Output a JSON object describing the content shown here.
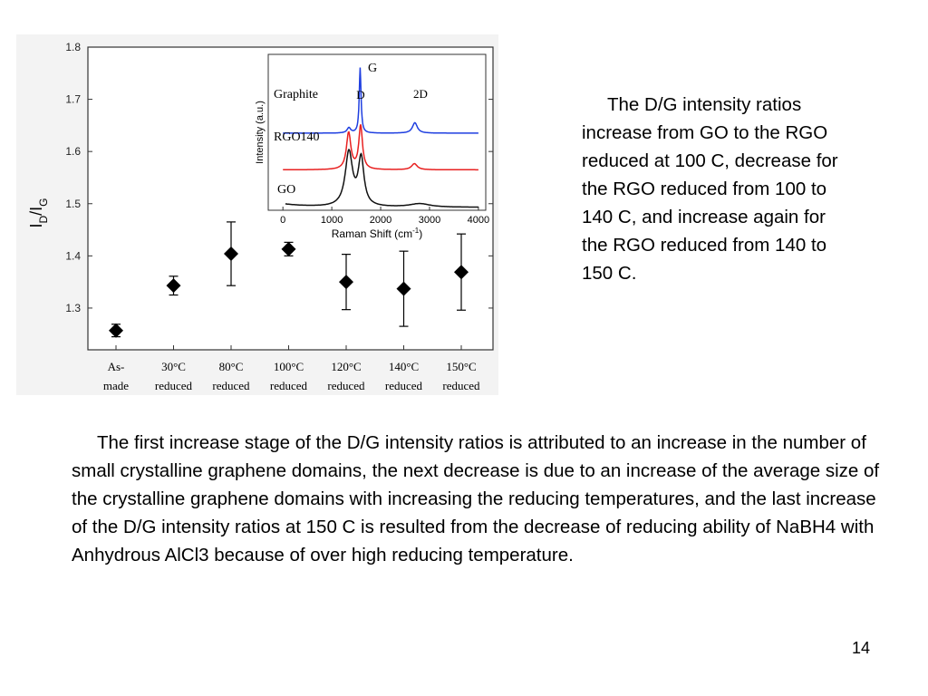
{
  "chart_data": [
    {
      "type": "scatter",
      "title": "",
      "xlabel": "",
      "ylabel_main": "I",
      "ylabel_sub_d": "D",
      "ylabel_sep": "/I",
      "ylabel_sub_g": "G",
      "ylim": [
        1.22,
        1.8
      ],
      "yticks": [
        "1.3",
        "1.4",
        "1.5",
        "1.6",
        "1.7",
        "1.8"
      ],
      "categories": [
        {
          "line1": "As-",
          "line2": "made"
        },
        {
          "line1": "30°C",
          "line2": "reduced"
        },
        {
          "line1": "80°C",
          "line2": "reduced"
        },
        {
          "line1": "100°C",
          "line2": "reduced"
        },
        {
          "line1": "120°C",
          "line2": "reduced"
        },
        {
          "line1": "140°C",
          "line2": "reduced"
        },
        {
          "line1": "150°C",
          "line2": "reduced"
        }
      ],
      "values": [
        1.257,
        1.343,
        1.404,
        1.413,
        1.35,
        1.337,
        1.369
      ],
      "errors": [
        0.012,
        0.018,
        0.061,
        0.013,
        0.053,
        0.072,
        0.073
      ],
      "marker": "diamond",
      "grid": false
    },
    {
      "type": "line",
      "inset": true,
      "xlabel": "Raman Shift (cm",
      "xlabel_sup": "-1",
      "xlabel_end": ")",
      "ylabel": "Intensity (a.u.)",
      "xlim": [
        -300,
        4150
      ],
      "xticks": [
        "0",
        "1000",
        "2000",
        "3000",
        "4000"
      ],
      "peak_labels": {
        "d": "D",
        "g": "G",
        "two_d": "2D"
      },
      "peaks_cm": {
        "D": 1350,
        "G": 1590,
        "2D": 2700
      },
      "series": [
        {
          "name": "Graphite",
          "color": "#1f3fe0",
          "baseline": 0.8,
          "x_start": 0,
          "peaks": [
            {
              "center": 1350,
              "height": 0.06,
              "width": 45
            },
            {
              "center": 1580,
              "height": 0.75,
              "width": 22
            },
            {
              "center": 2700,
              "height": 0.12,
              "width": 60
            }
          ]
        },
        {
          "name": "RGO140",
          "color": "#e82020",
          "baseline": 0.38,
          "x_start": 0,
          "peaks": [
            {
              "center": 1345,
              "height": 0.42,
              "width": 55
            },
            {
              "center": 1590,
              "height": 0.5,
              "width": 45
            },
            {
              "center": 2690,
              "height": 0.07,
              "width": 70
            }
          ]
        },
        {
          "name": "GO",
          "color": "#111111",
          "baseline": -0.05,
          "x_start": 50,
          "peaks": [
            {
              "center": 1350,
              "height": 0.62,
              "width": 90
            },
            {
              "center": 1600,
              "height": 0.54,
              "width": 70
            },
            {
              "center": 2800,
              "height": 0.04,
              "width": 250
            }
          ]
        }
      ]
    }
  ],
  "side_text": "The D/G intensity ratios increase from GO to the RGO reduced at 100 C, decrease for the RGO reduced from 100 to 140 C, and increase again for the RGO reduced from 140 to 150 C.",
  "main_text": "The first increase stage of the D/G intensity ratios is attributed to an increase in the number of small crystalline graphene domains, the next decrease is due to an increase of the average size of the crystalline graphene domains with increasing the reducing temperatures, and the last increase of the D/G intensity ratios at 150 C is resulted from the decrease of reducing ability of NaBH4 with Anhydrous AlCl3 because of over high reducing temperature.",
  "page_number": "14"
}
